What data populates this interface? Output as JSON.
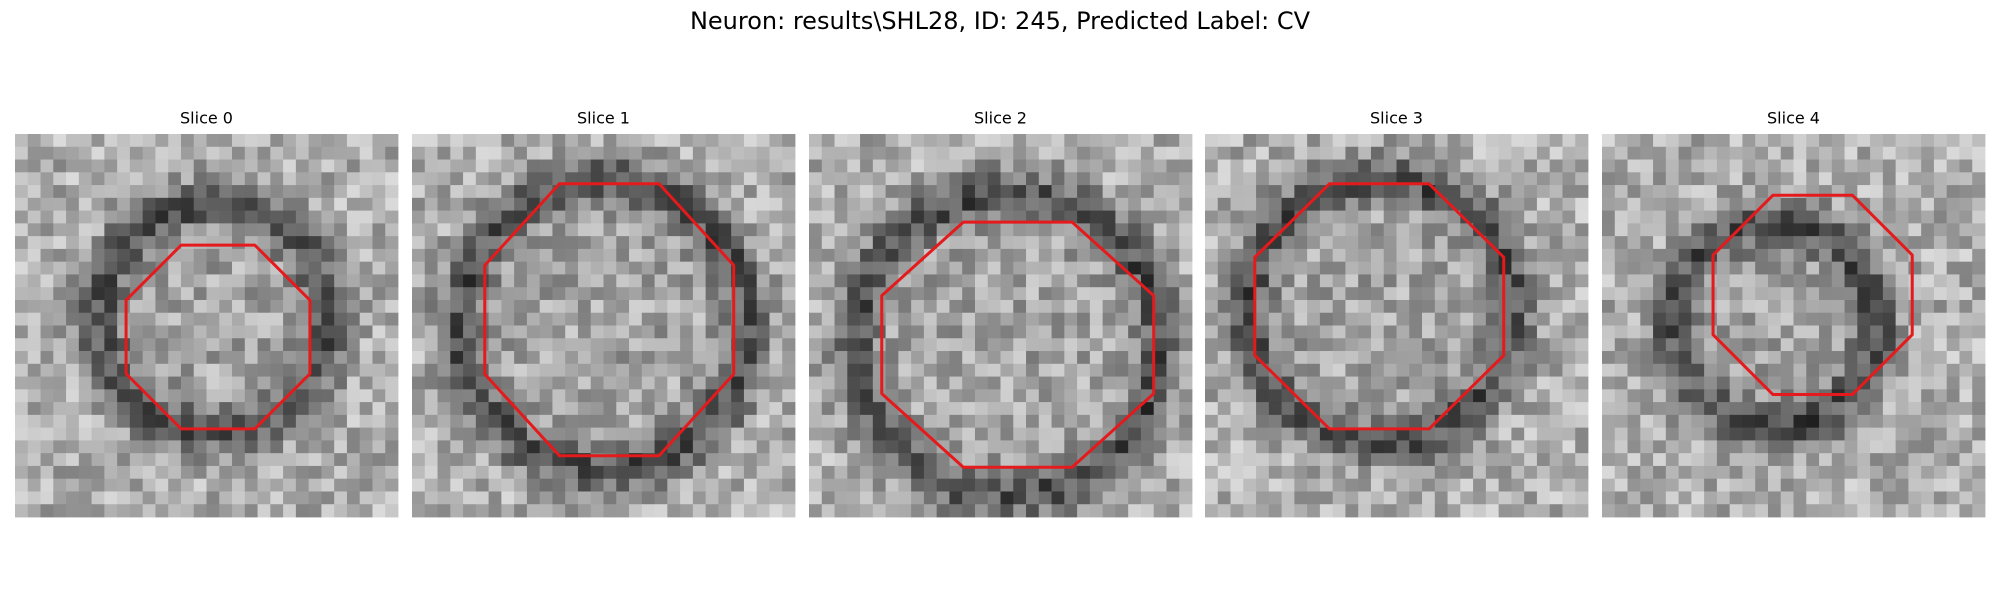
{
  "title": "Neuron: results\\SHL28, ID: 245, Predicted Label: CV",
  "panels": [
    {
      "title": "Slice 0"
    },
    {
      "title": "Slice 1"
    },
    {
      "title": "Slice 2"
    },
    {
      "title": "Slice 3"
    },
    {
      "title": "Slice 4"
    }
  ]
}
